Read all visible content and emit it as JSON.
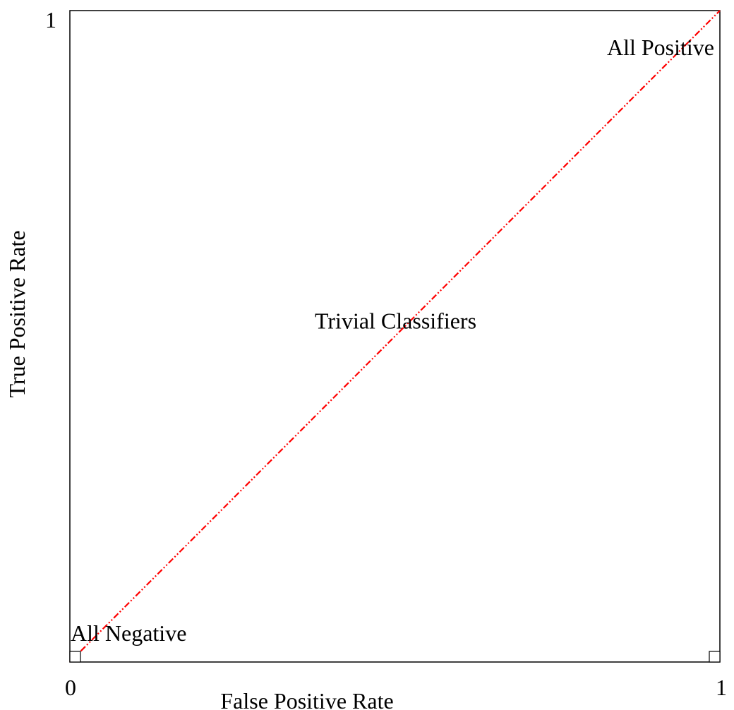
{
  "chart_data": {
    "type": "line",
    "title": "",
    "xlabel": "False Positive Rate",
    "ylabel": "True Positive Rate",
    "xlim": [
      0,
      1
    ],
    "ylim": [
      0,
      1
    ],
    "x_ticks": [
      "0",
      "1"
    ],
    "y_ticks": [
      "1"
    ],
    "grid": false,
    "legend": "none",
    "series": [
      {
        "x": [
          0,
          1
        ],
        "y": [
          0,
          1
        ],
        "color": "#ff0000",
        "style": "dash-dot-dot"
      }
    ],
    "points": [
      {
        "x": 0,
        "y": 0,
        "marker": "square"
      },
      {
        "x": 1,
        "y": 0,
        "marker": "square"
      }
    ],
    "annotations": [
      {
        "text": "All Negative",
        "x": 0,
        "y": 0
      },
      {
        "text": "All Positive",
        "x": 1,
        "y": 1
      },
      {
        "text": "Trivial Classifiers",
        "x": 0.5,
        "y": 0.5
      }
    ]
  }
}
